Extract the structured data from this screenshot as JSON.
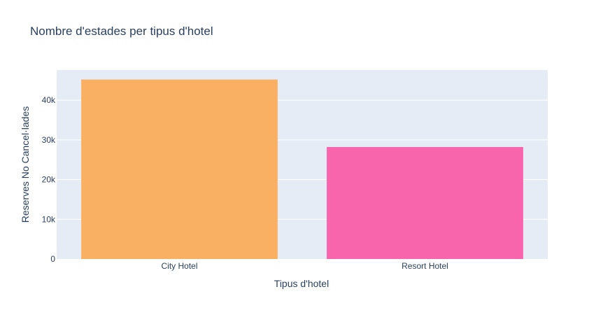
{
  "chart_data": {
    "type": "bar",
    "title": "Nombre d'estades per tipus d'hotel",
    "xlabel": "Tipus d'hotel",
    "ylabel": "Reserves No Cancel·lades",
    "categories": [
      "City Hotel",
      "Resort Hotel"
    ],
    "values": [
      45200,
      28200
    ],
    "bar_colors": [
      "#FAB062",
      "#F865AC"
    ],
    "ylim": [
      0,
      47600
    ],
    "yticks": [
      0,
      10000,
      20000,
      30000,
      40000
    ],
    "ytick_labels": [
      "0",
      "10k",
      "20k",
      "30k",
      "40k"
    ],
    "grid": true,
    "plot_background": "#E5ECF6",
    "text_color": "#2a3f5f"
  }
}
